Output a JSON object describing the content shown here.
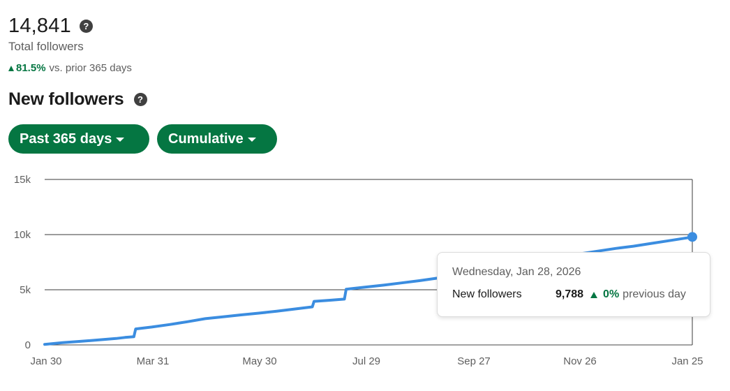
{
  "summary": {
    "total_value": "14,841",
    "total_label": "Total followers",
    "change_pct": "81.5%",
    "change_label": "vs. prior 365 days"
  },
  "section": {
    "title": "New followers"
  },
  "filters": {
    "range_label": "Past 365 days",
    "mode_label": "Cumulative"
  },
  "tooltip": {
    "date": "Wednesday, Jan 28, 2026",
    "label": "New followers",
    "value": "9,788",
    "change_pct": "0%",
    "change_label": "previous day"
  },
  "colors": {
    "accent": "#057642",
    "line": "#3b8de0"
  },
  "chart_data": {
    "type": "line",
    "x_tick_labels": [
      "Jan 30",
      "Mar 31",
      "May 30",
      "Jul 29",
      "Sep 27",
      "Nov 26",
      "Jan 25"
    ],
    "y_tick_labels": [
      "0",
      "5k",
      "10k",
      "15k"
    ],
    "ylim": [
      0,
      15000
    ],
    "grid": true,
    "series": [
      {
        "x_days": [
          0,
          10,
          20,
          30,
          40,
          45,
          50,
          51,
          60,
          70,
          80,
          90,
          100,
          110,
          120,
          130,
          140,
          150,
          151,
          160,
          168,
          169,
          180,
          190,
          200,
          210,
          220,
          230,
          240,
          250,
          260,
          270,
          280,
          290,
          300,
          310,
          320,
          330,
          340,
          350,
          360,
          363
        ],
        "values": [
          50,
          200,
          320,
          450,
          580,
          680,
          740,
          1450,
          1620,
          1850,
          2100,
          2380,
          2550,
          2720,
          2880,
          3050,
          3250,
          3450,
          3950,
          4050,
          4150,
          5050,
          5250,
          5420,
          5620,
          5820,
          6050,
          6300,
          6580,
          6850,
          7100,
          7350,
          7650,
          7950,
          8250,
          8500,
          8750,
          8950,
          9200,
          9450,
          9700,
          9788
        ]
      }
    ]
  }
}
